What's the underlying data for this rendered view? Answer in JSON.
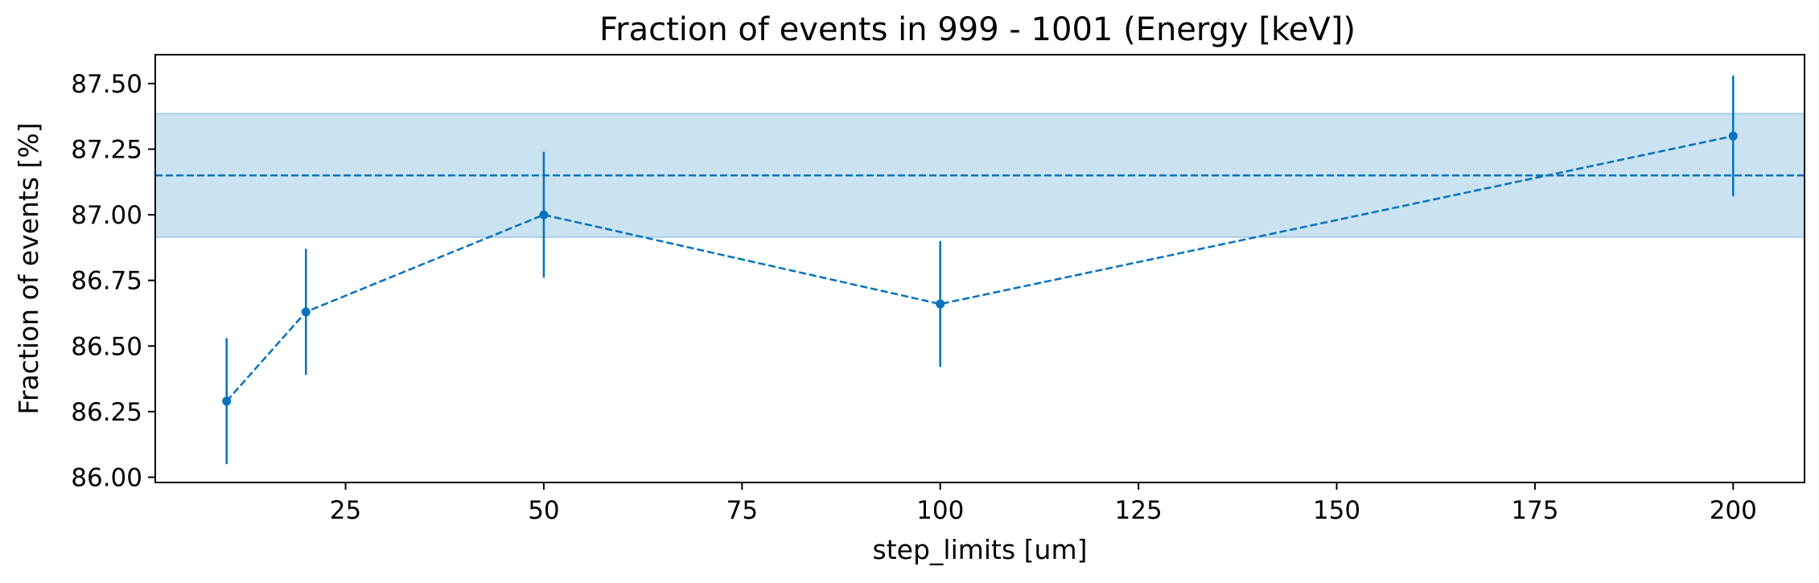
{
  "chart_data": {
    "type": "line",
    "title": "Fraction of events in 999 - 1001 (Energy [keV])",
    "xlabel": "step_limits [um]",
    "ylabel": "Fraction of events [%]",
    "xlim": [
      1,
      209
    ],
    "ylim": [
      85.98,
      87.61
    ],
    "xticks": [
      25,
      50,
      75,
      100,
      125,
      150,
      175,
      200
    ],
    "yticks": [
      86.0,
      86.25,
      86.5,
      86.75,
      87.0,
      87.25,
      87.5
    ],
    "ytick_labels": [
      "86.00",
      "86.25",
      "86.50",
      "86.75",
      "87.00",
      "87.25",
      "87.50"
    ],
    "grid": false,
    "color": "#0072BD",
    "band_color": "#A8CFE8",
    "series": [
      {
        "x": [
          10,
          20,
          50,
          100,
          200
        ],
        "y": [
          86.29,
          86.63,
          87.0,
          86.66,
          87.3
        ],
        "yerr": [
          0.24,
          0.24,
          0.24,
          0.24,
          0.23
        ],
        "line_style": "dashed",
        "marker": "circle"
      }
    ],
    "reference_line": {
      "y": 87.15,
      "line_style": "dashed"
    },
    "reference_band": {
      "y_low": 86.915,
      "y_high": 87.385
    }
  }
}
